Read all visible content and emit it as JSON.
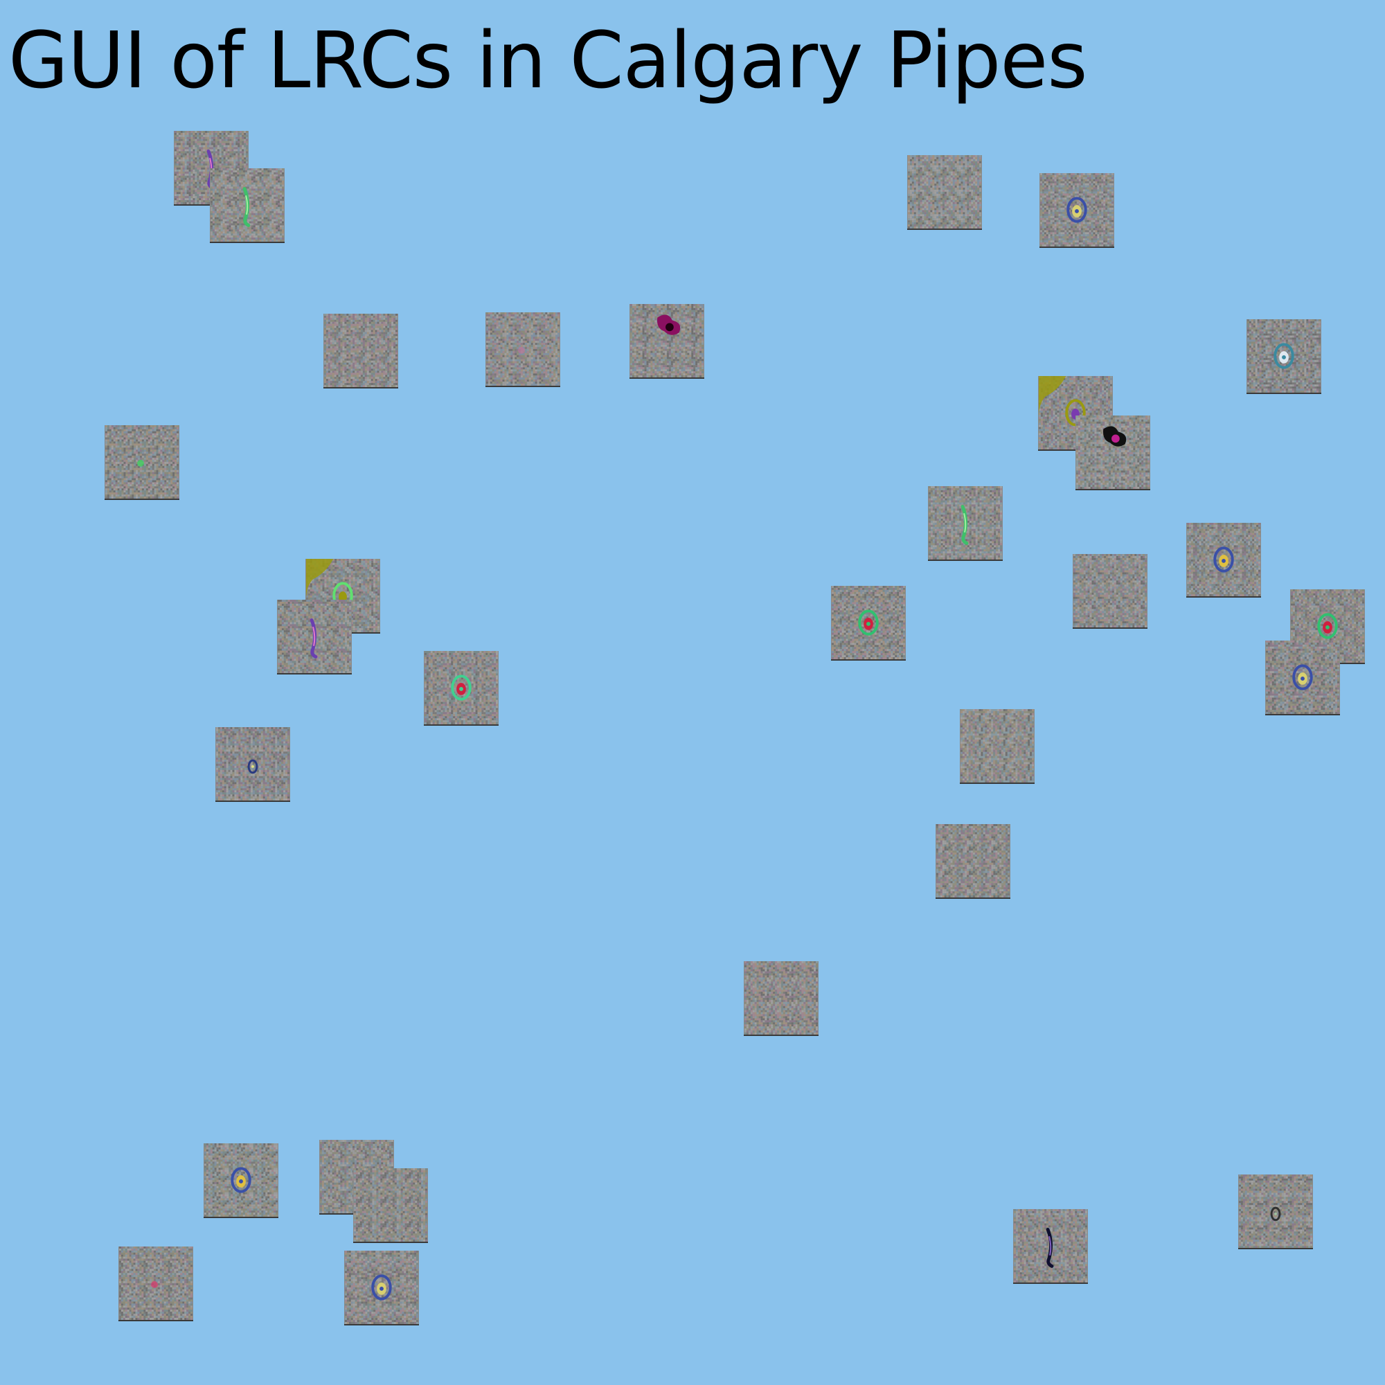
{
  "title": "GUI of LRCs in Calgary Pipes",
  "colors": {
    "background": "#8ac2ec",
    "tile_base": "#8a8a8a",
    "title_text": "#000000"
  },
  "tiles": [
    {
      "name": "lrc-tile-1",
      "feature": "purple-streak"
    },
    {
      "name": "lrc-tile-2",
      "feature": "green-streak"
    },
    {
      "name": "lrc-tile-3",
      "feature": "none"
    },
    {
      "name": "lrc-tile-4",
      "feature": "blue-ring"
    },
    {
      "name": "lrc-tile-5",
      "feature": "none"
    },
    {
      "name": "lrc-tile-6",
      "feature": "faint-pink"
    },
    {
      "name": "lrc-tile-7",
      "feature": "magenta-blob"
    },
    {
      "name": "lrc-tile-8",
      "feature": "teal-ring"
    },
    {
      "name": "lrc-tile-9",
      "feature": "green-dot"
    },
    {
      "name": "lrc-tile-10",
      "feature": "olive-patch"
    },
    {
      "name": "lrc-tile-11",
      "feature": "black-blob"
    },
    {
      "name": "lrc-tile-12",
      "feature": "green-streak"
    },
    {
      "name": "lrc-tile-13",
      "feature": "yellow-ring"
    },
    {
      "name": "lrc-tile-14",
      "feature": "none"
    },
    {
      "name": "lrc-tile-15",
      "feature": "green-ring"
    },
    {
      "name": "lrc-tile-16",
      "feature": "olive-green-ring"
    },
    {
      "name": "lrc-tile-17",
      "feature": "purple-streak"
    },
    {
      "name": "lrc-tile-18",
      "feature": "blue-ring"
    },
    {
      "name": "lrc-tile-19",
      "feature": "green-red-ring"
    },
    {
      "name": "lrc-tile-20",
      "feature": "small-ring"
    },
    {
      "name": "lrc-tile-21",
      "feature": "none"
    },
    {
      "name": "lrc-tile-22",
      "feature": "gray-ring"
    },
    {
      "name": "lrc-tile-23",
      "feature": "none"
    },
    {
      "name": "lrc-tile-24",
      "feature": "none"
    },
    {
      "name": "lrc-tile-25",
      "feature": "yellow-ring"
    },
    {
      "name": "lrc-tile-26",
      "feature": "edge-streak"
    },
    {
      "name": "lrc-tile-27",
      "feature": "none"
    },
    {
      "name": "lrc-tile-28",
      "feature": "small-streak"
    },
    {
      "name": "lrc-tile-29",
      "feature": "pink-dot"
    },
    {
      "name": "lrc-tile-30",
      "feature": "blue-ring"
    },
    {
      "name": "lrc-tile-31",
      "feature": "dark-streak"
    },
    {
      "name": "lrc-tile-32",
      "feature": "green-ring"
    }
  ]
}
